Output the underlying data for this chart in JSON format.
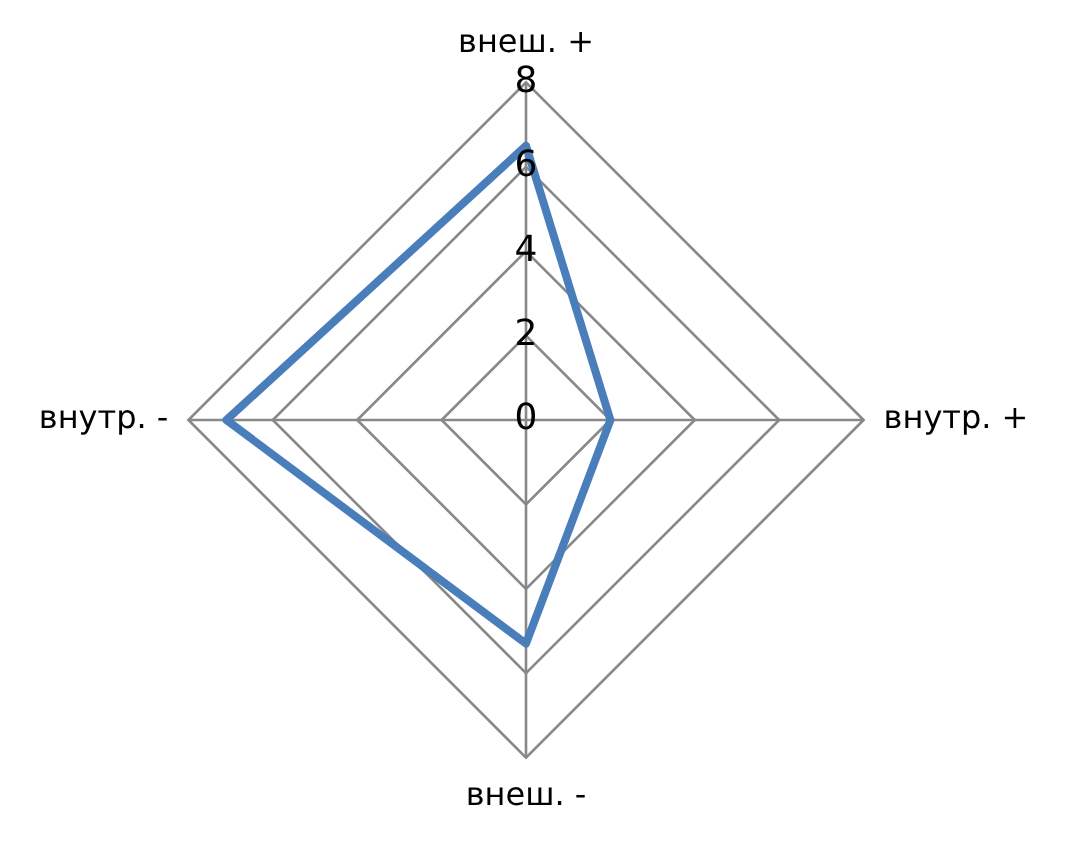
{
  "chart_data": {
    "type": "radar",
    "categories": [
      "внеш. +",
      "внутр. +",
      "внеш. -",
      "внутр. -"
    ],
    "series": [
      {
        "color": "#4a7ebb",
        "values": [
          6.5,
          2,
          5.3,
          7.1
        ]
      }
    ],
    "ylim": [
      0,
      8
    ],
    "yticks": [
      0,
      2,
      4,
      6,
      8
    ],
    "grid": true,
    "marker": "none"
  }
}
